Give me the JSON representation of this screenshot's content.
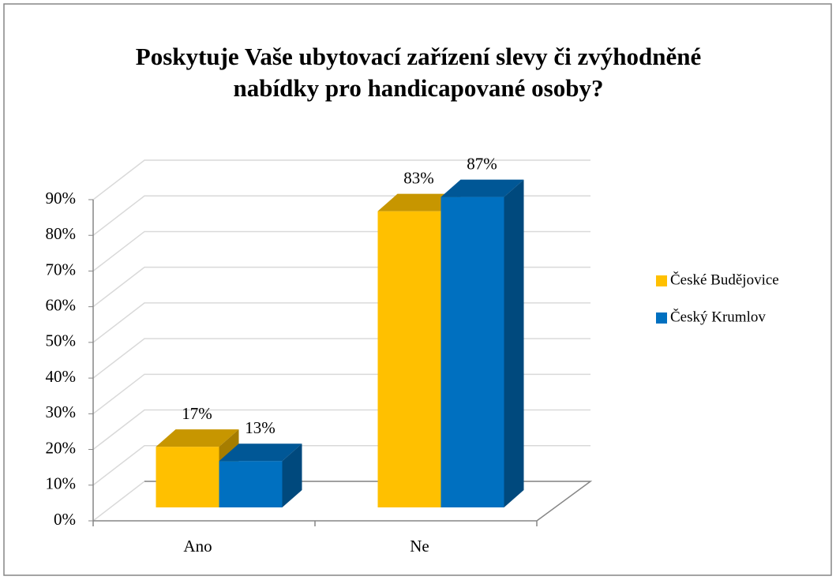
{
  "chart_data": {
    "type": "bar3d",
    "title": [
      "Poskytuje Vaše ubytovací zařízení slevy či zvýhodněné",
      "nabídky  pro handicapované osoby?"
    ],
    "categories": [
      "Ano",
      "Ne"
    ],
    "series": [
      {
        "name": "České Budějovice",
        "color": "#FFC000",
        "values": [
          17,
          83
        ],
        "value_labels": [
          "17%",
          "83%"
        ]
      },
      {
        "name": "Český Krumlov",
        "color": "#0070C0",
        "values": [
          13,
          87
        ],
        "value_labels": [
          "13%",
          "87%"
        ]
      }
    ],
    "ylim": [
      0,
      90
    ],
    "yticks": [
      {
        "value": 0,
        "label": "0%"
      },
      {
        "value": 10,
        "label": "10%"
      },
      {
        "value": 20,
        "label": "20%"
      },
      {
        "value": 30,
        "label": "30%"
      },
      {
        "value": 40,
        "label": "40%"
      },
      {
        "value": 50,
        "label": "50%"
      },
      {
        "value": 60,
        "label": "60%"
      },
      {
        "value": 70,
        "label": "70%"
      },
      {
        "value": 80,
        "label": "80%"
      },
      {
        "value": 90,
        "label": "90%"
      }
    ],
    "grid": true,
    "legend": "right"
  }
}
